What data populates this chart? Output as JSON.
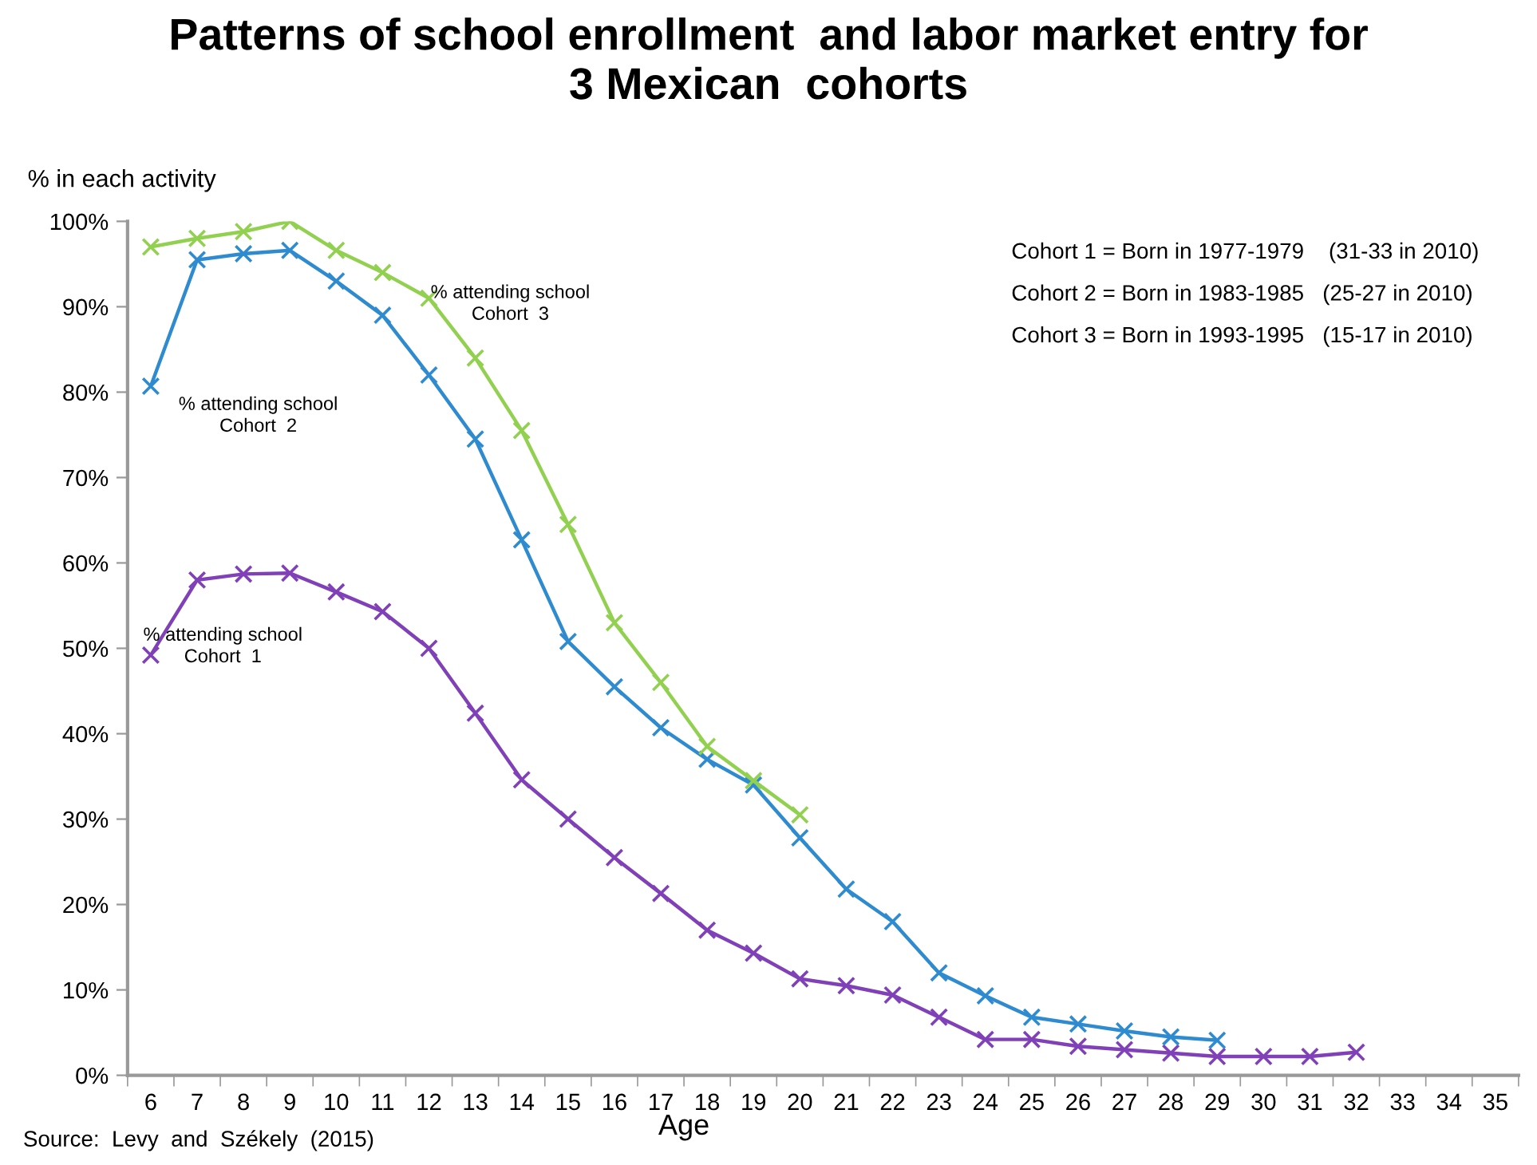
{
  "chart_data": {
    "type": "line",
    "title": "Patterns of school enrollment  and labor market entry for\n3 Mexican  cohorts",
    "ylabel": "% in each activity",
    "xlabel": "Age",
    "categories": [
      "6",
      "7",
      "8",
      "9",
      "10",
      "11",
      "12",
      "13",
      "14",
      "15",
      "16",
      "17",
      "18",
      "19",
      "20",
      "21",
      "22",
      "23",
      "24",
      "25",
      "26",
      "27",
      "28",
      "29",
      "30",
      "31",
      "32",
      "33",
      "34",
      "35"
    ],
    "series": [
      {
        "color": "#8040b8",
        "values": [
          49.2,
          58,
          58.7,
          58.8,
          56.6,
          54.3,
          50,
          42.4,
          34.6,
          30,
          25.5,
          21.3,
          17,
          14.3,
          11.3,
          10.5,
          9.4,
          6.8,
          4.2,
          4.2,
          3.4,
          3,
          2.6,
          2.2,
          2.2,
          2.2,
          2.7,
          null,
          null,
          null
        ]
      },
      {
        "color": "#2e8bd0",
        "values": [
          80.7,
          95.5,
          96.2,
          96.6,
          93,
          89,
          82,
          74.5,
          62.7,
          50.8,
          45.5,
          40.7,
          37,
          34,
          27.8,
          21.8,
          18,
          12,
          9.3,
          6.8,
          6,
          5.2,
          4.5,
          4.1,
          null,
          null,
          null,
          null,
          null,
          null
        ]
      },
      {
        "color": "#92d050",
        "values": [
          97,
          98,
          98.8,
          100,
          96.6,
          94,
          91,
          84,
          75.5,
          64.5,
          53,
          46,
          38.5,
          34.5,
          30.5,
          null,
          null,
          null,
          null,
          null,
          null,
          null,
          null,
          null,
          null,
          null,
          null,
          null,
          null,
          null
        ]
      }
    ],
    "ylim": [
      0,
      100
    ],
    "yticks": [
      {
        "value": 0,
        "label": "0%"
      },
      {
        "value": 10,
        "label": "10%"
      },
      {
        "value": 20,
        "label": "20%"
      },
      {
        "value": 30,
        "label": "30%"
      },
      {
        "value": 40,
        "label": "40%"
      },
      {
        "value": 50,
        "label": "50%"
      },
      {
        "value": 60,
        "label": "60%"
      },
      {
        "value": 70,
        "label": "70%"
      },
      {
        "value": 80,
        "label": "80%"
      },
      {
        "value": 90,
        "label": "90%"
      },
      {
        "value": 100,
        "label": "100%"
      }
    ],
    "marker": "cross",
    "line_style": "solid",
    "grid": false,
    "legend": false,
    "annotations": [
      "% attending school\nCohort  1",
      "% attending school\nCohort  2",
      "% attending school\nCohort  3",
      "Cohort 1 = Born in 1977-1979    (31-33 in 2010)",
      "Cohort 2 = Born in 1983-1985   (25-27 in 2010)",
      "Cohort 3 = Born in 1993-1995   (15-17 in 2010)",
      "Source:  Levy  and  Székely  (2015)"
    ]
  }
}
